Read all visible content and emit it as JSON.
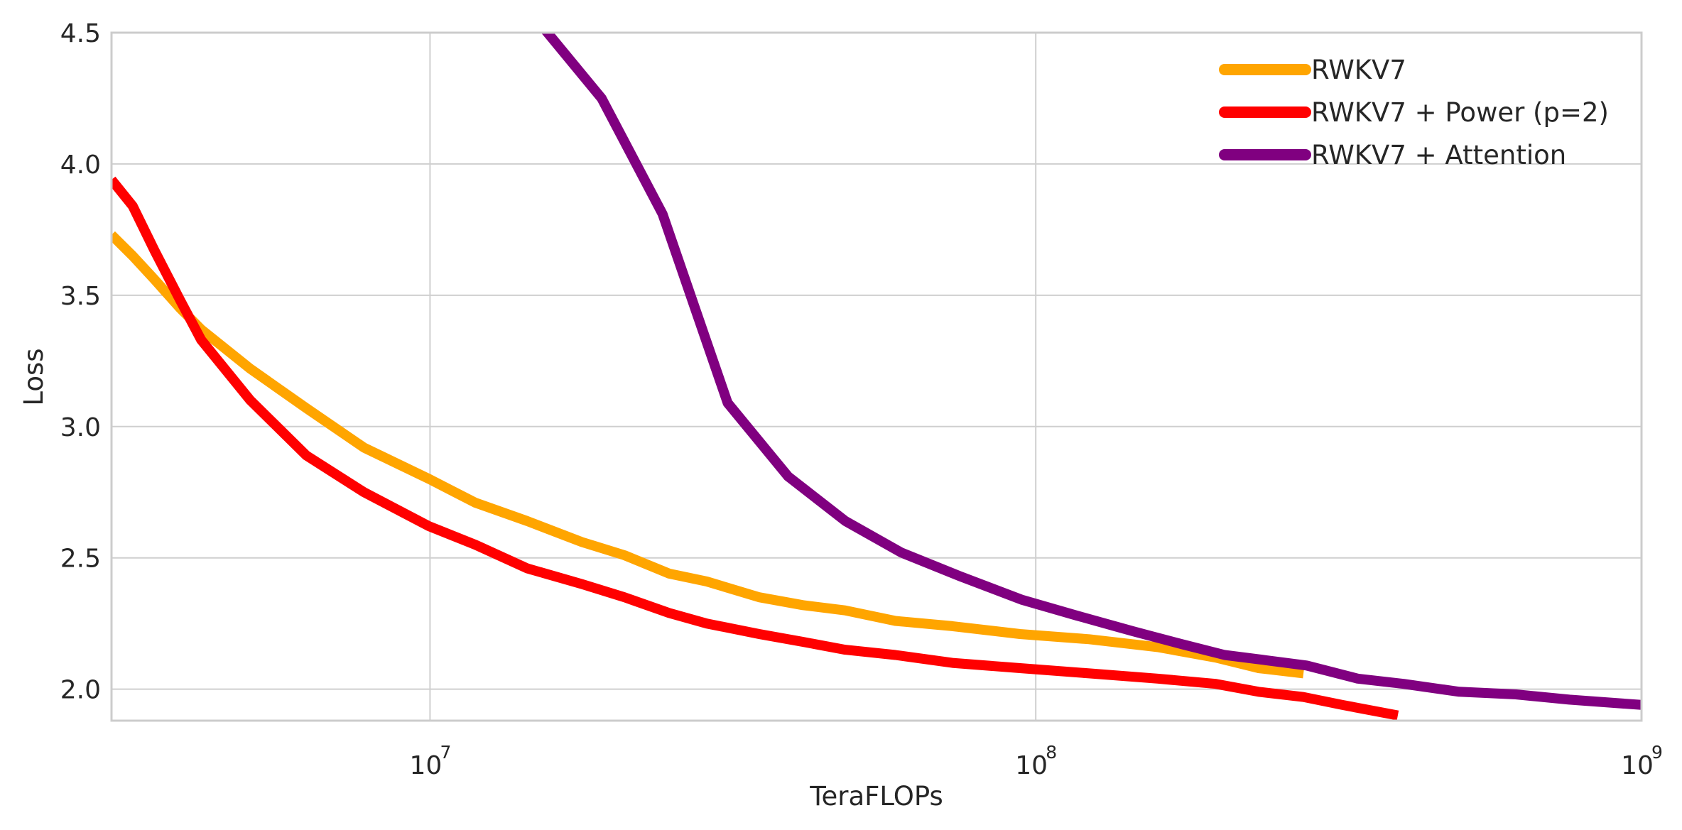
{
  "chart_data": {
    "type": "line",
    "title": "",
    "xlabel": "TeraFLOPs",
    "ylabel": "Loss",
    "xscale": "log",
    "xlim": [
      2980000,
      1000000000
    ],
    "ylim": [
      1.88,
      4.5
    ],
    "grid": true,
    "legend_position": "top-right",
    "xticks": [
      {
        "value": 10000000,
        "base": "10",
        "exp": "7"
      },
      {
        "value": 100000000,
        "base": "10",
        "exp": "8"
      },
      {
        "value": 1000000000,
        "base": "10",
        "exp": "9"
      }
    ],
    "yticks": [
      2.0,
      2.5,
      3.0,
      3.5,
      4.0,
      4.5
    ],
    "ytick_labels": [
      "2.0",
      "2.5",
      "3.0",
      "3.5",
      "4.0",
      "4.5"
    ],
    "series": [
      {
        "name": "RWKV7",
        "color": "#FFA500",
        "x": [
          2980000,
          3230000,
          3510000,
          3870000,
          4190000,
          5050000,
          6250000,
          7780000,
          9970000,
          11880000,
          14470000,
          17820000,
          20940000,
          24820000,
          28640000,
          34950000,
          41260000,
          48440000,
          58640000,
          72810000,
          94190000,
          122500000,
          158900000,
          198300000,
          233100000,
          276700000
        ],
        "y": [
          3.73,
          3.65,
          3.56,
          3.45,
          3.37,
          3.22,
          3.07,
          2.92,
          2.8,
          2.71,
          2.64,
          2.56,
          2.51,
          2.44,
          2.41,
          2.35,
          2.32,
          2.3,
          2.26,
          2.24,
          2.21,
          2.19,
          2.16,
          2.12,
          2.08,
          2.06
        ]
      },
      {
        "name": "RWKV7 + Power (p=2)",
        "color": "#FF0000",
        "x": [
          2980000,
          3230000,
          3510000,
          3870000,
          4190000,
          5050000,
          6250000,
          7780000,
          9970000,
          11880000,
          14470000,
          17820000,
          20940000,
          24820000,
          28640000,
          34950000,
          41260000,
          48440000,
          58640000,
          72810000,
          94190000,
          122500000,
          158900000,
          198300000,
          233100000,
          276700000,
          320600000,
          396000000
        ],
        "y": [
          3.94,
          3.84,
          3.67,
          3.48,
          3.33,
          3.1,
          2.89,
          2.75,
          2.62,
          2.55,
          2.46,
          2.4,
          2.35,
          2.29,
          2.25,
          2.21,
          2.18,
          2.15,
          2.13,
          2.1,
          2.08,
          2.06,
          2.04,
          2.02,
          1.99,
          1.97,
          1.94,
          1.9
        ]
      },
      {
        "name": "RWKV7 + Attention",
        "color": "#800080",
        "x": [
          15500000,
          19200000,
          24200000,
          31000000,
          39000000,
          48500000,
          60000000,
          75000000,
          95000000,
          117000000,
          145000000,
          175000000,
          205000000,
          240000000,
          280000000,
          340000000,
          405000000,
          500000000,
          620000000,
          760000000,
          1000000000
        ],
        "y": [
          4.51,
          4.25,
          3.81,
          3.09,
          2.81,
          2.64,
          2.52,
          2.43,
          2.34,
          2.28,
          2.22,
          2.17,
          2.13,
          2.11,
          2.09,
          2.04,
          2.02,
          1.99,
          1.98,
          1.96,
          1.94
        ]
      }
    ]
  }
}
